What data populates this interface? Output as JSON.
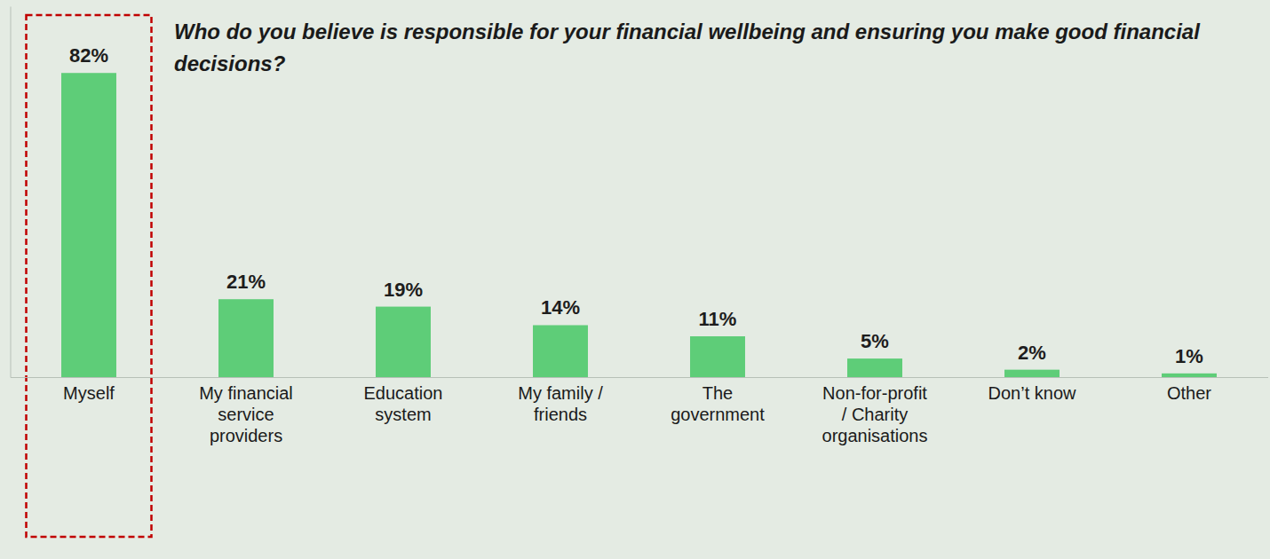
{
  "chart_data": {
    "type": "bar",
    "title": "Who do you believe is responsible for your financial wellbeing and ensuring you make good financial decisions?",
    "categories": [
      "Myself",
      "My financial service providers",
      "Education system",
      "My family / friends",
      "The government",
      "Non-for-profit / Charity organisations",
      "Don’t know",
      "Other"
    ],
    "values": [
      82,
      21,
      19,
      14,
      11,
      5,
      2,
      1
    ],
    "value_labels": [
      "82%",
      "21%",
      "19%",
      "14%",
      "11%",
      "5%",
      "2%",
      "1%"
    ],
    "data_labels": true,
    "color": "#5ecd78",
    "ylim": [
      0,
      100
    ],
    "tick_labels": "x",
    "grid": false
  }
}
